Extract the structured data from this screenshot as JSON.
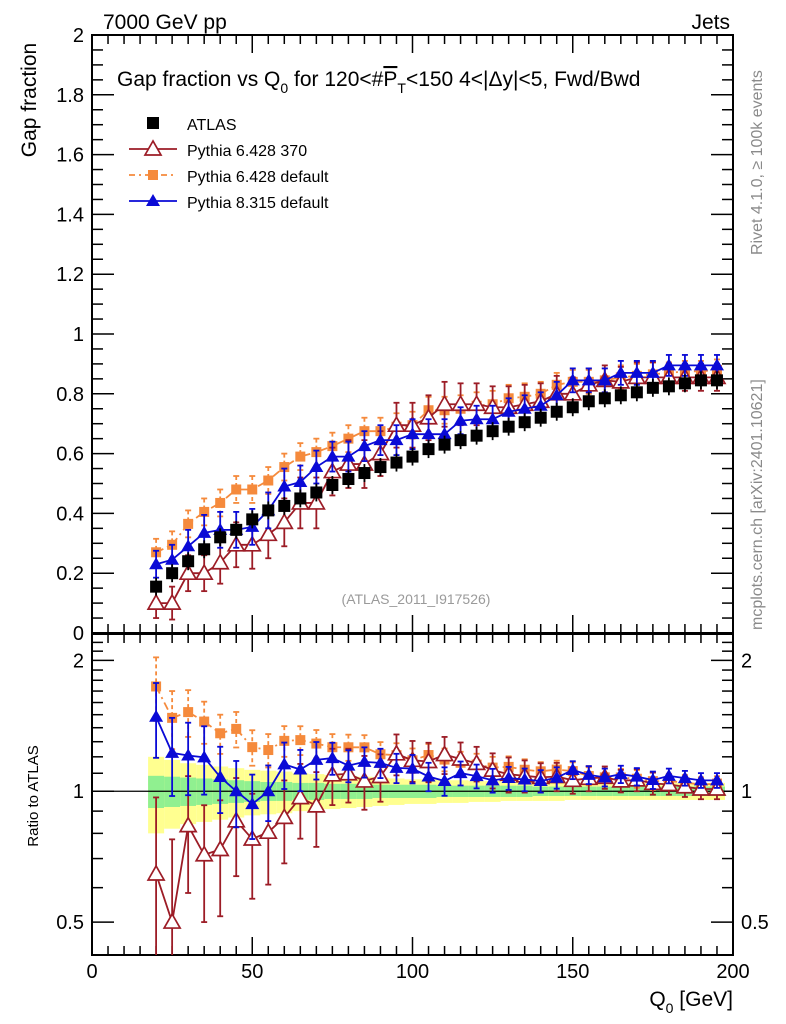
{
  "chart_data": [
    {
      "type": "line",
      "panel": "main",
      "title": "Gap fraction vs Q0 for 120<#PT<150  4<|Δy|<5, Fwd/Bwd",
      "title_parts": {
        "pre": "Gap fraction vs Q",
        "sub": "0",
        "mid": " for 120<#",
        "bar": "P",
        "barsub": "T",
        "post": "<150  4<|Δy|<5, Fwd/Bwd"
      },
      "header_left": "7000 GeV pp",
      "header_right": "Jets",
      "ylabel": "Gap fraction",
      "xlabel": "",
      "xlim": [
        0,
        200
      ],
      "ylim": [
        0,
        2
      ],
      "yticks": [
        "0",
        "0.2",
        "0.4",
        "0.6",
        "0.8",
        "1",
        "1.2",
        "1.4",
        "1.6",
        "1.8",
        "2"
      ],
      "ytick_values": [
        0,
        0.2,
        0.4,
        0.6,
        0.8,
        1.0,
        1.2,
        1.4,
        1.6,
        1.8,
        2.0
      ],
      "annotation": "(ATLAS_2011_I917526)",
      "legend_position": "top-left",
      "x": [
        20,
        25,
        30,
        35,
        40,
        45,
        50,
        55,
        60,
        65,
        70,
        75,
        80,
        85,
        90,
        95,
        100,
        105,
        110,
        115,
        120,
        125,
        130,
        135,
        140,
        145,
        150,
        155,
        160,
        165,
        170,
        175,
        180,
        185,
        190,
        195
      ],
      "series": [
        {
          "name": "ATLAS",
          "marker": "square",
          "color": "#000000",
          "values": [
            0.155,
            0.2,
            0.24,
            0.28,
            0.32,
            0.345,
            0.38,
            0.41,
            0.425,
            0.45,
            0.47,
            0.495,
            0.515,
            0.535,
            0.555,
            0.57,
            0.59,
            0.615,
            0.63,
            0.645,
            0.66,
            0.675,
            0.69,
            0.705,
            0.72,
            0.74,
            0.755,
            0.775,
            0.785,
            0.795,
            0.805,
            0.82,
            0.825,
            0.835,
            0.845,
            0.845
          ],
          "errors": [
            0.03,
            0.03,
            0.03,
            0.03,
            0.03,
            0.03,
            0.03,
            0.03,
            0.03,
            0.03,
            0.03,
            0.03,
            0.03,
            0.03,
            0.03,
            0.03,
            0.03,
            0.03,
            0.03,
            0.03,
            0.03,
            0.03,
            0.03,
            0.03,
            0.03,
            0.03,
            0.03,
            0.03,
            0.03,
            0.03,
            0.03,
            0.03,
            0.03,
            0.03,
            0.03,
            0.03
          ]
        },
        {
          "name": "Pythia 6.428 370",
          "marker": "open-triangle",
          "color": "#9c1c26",
          "values": [
            0.1,
            0.1,
            0.2,
            0.2,
            0.235,
            0.295,
            0.295,
            0.33,
            0.37,
            0.435,
            0.435,
            0.54,
            0.565,
            0.565,
            0.6,
            0.695,
            0.695,
            0.72,
            0.765,
            0.765,
            0.765,
            0.755,
            0.755,
            0.765,
            0.775,
            0.8,
            0.8,
            0.83,
            0.845,
            0.84,
            0.855,
            0.855,
            0.855,
            0.855,
            0.855,
            0.855
          ],
          "errors": [
            0.05,
            0.055,
            0.06,
            0.06,
            0.07,
            0.075,
            0.08,
            0.08,
            0.08,
            0.085,
            0.085,
            0.08,
            0.08,
            0.08,
            0.075,
            0.075,
            0.075,
            0.075,
            0.075,
            0.07,
            0.07,
            0.07,
            0.07,
            0.065,
            0.06,
            0.06,
            0.055,
            0.055,
            0.05,
            0.05,
            0.05,
            0.05,
            0.045,
            0.045,
            0.045,
            0.045
          ]
        },
        {
          "name": "Pythia 6.428 default",
          "marker": "square",
          "color": "#f58a3c",
          "dashed": true,
          "values": [
            0.27,
            0.295,
            0.365,
            0.405,
            0.435,
            0.48,
            0.48,
            0.51,
            0.555,
            0.59,
            0.605,
            0.625,
            0.65,
            0.675,
            0.675,
            0.69,
            0.695,
            0.745,
            0.745,
            0.75,
            0.76,
            0.765,
            0.785,
            0.79,
            0.8,
            0.83,
            0.84,
            0.84,
            0.845,
            0.855,
            0.86,
            0.865,
            0.87,
            0.875,
            0.875,
            0.88
          ],
          "errors": [
            0.045,
            0.045,
            0.045,
            0.045,
            0.045,
            0.045,
            0.045,
            0.045,
            0.045,
            0.045,
            0.045,
            0.045,
            0.045,
            0.045,
            0.045,
            0.045,
            0.045,
            0.045,
            0.045,
            0.045,
            0.045,
            0.045,
            0.045,
            0.045,
            0.04,
            0.04,
            0.04,
            0.04,
            0.04,
            0.04,
            0.04,
            0.04,
            0.035,
            0.035,
            0.035,
            0.035
          ]
        },
        {
          "name": "Pythia 8.315 default",
          "marker": "triangle",
          "color": "#0a0ad6",
          "values": [
            0.23,
            0.245,
            0.29,
            0.335,
            0.345,
            0.345,
            0.355,
            0.41,
            0.49,
            0.505,
            0.555,
            0.59,
            0.59,
            0.625,
            0.645,
            0.645,
            0.665,
            0.665,
            0.665,
            0.71,
            0.715,
            0.715,
            0.74,
            0.75,
            0.76,
            0.795,
            0.845,
            0.845,
            0.845,
            0.87,
            0.87,
            0.87,
            0.895,
            0.895,
            0.895,
            0.895
          ],
          "errors": [
            0.045,
            0.05,
            0.055,
            0.06,
            0.06,
            0.06,
            0.06,
            0.06,
            0.06,
            0.055,
            0.055,
            0.05,
            0.05,
            0.05,
            0.05,
            0.05,
            0.05,
            0.05,
            0.05,
            0.045,
            0.045,
            0.045,
            0.045,
            0.045,
            0.045,
            0.045,
            0.04,
            0.04,
            0.04,
            0.04,
            0.04,
            0.04,
            0.035,
            0.035,
            0.035,
            0.035
          ]
        }
      ]
    },
    {
      "type": "line",
      "panel": "ratio",
      "ylabel": "Ratio to ATLAS",
      "xlabel": "Q0 [GeV]",
      "xlabel_parts": {
        "pre": "Q",
        "sub": "0",
        "post": " [GeV]"
      },
      "xlim": [
        0,
        200
      ],
      "ylim": [
        0.42,
        2.3
      ],
      "yscale": "log",
      "xticks": [
        "0",
        "50",
        "100",
        "150",
        "200"
      ],
      "xtick_values": [
        0,
        50,
        100,
        150,
        200
      ],
      "yticks": [
        "0.5",
        "1",
        "2"
      ],
      "ytick_values": [
        0.5,
        1,
        2
      ],
      "reference_line": 1,
      "band_inner_color": "#90f090",
      "band_outer_color": "#ffff90",
      "band_inner_halfwidth": [
        0.085,
        0.08,
        0.075,
        0.07,
        0.065,
        0.06,
        0.055,
        0.05,
        0.05,
        0.045,
        0.045,
        0.04,
        0.04,
        0.04,
        0.035,
        0.035,
        0.035,
        0.035,
        0.03,
        0.03,
        0.03,
        0.03,
        0.03,
        0.03,
        0.025,
        0.025,
        0.025,
        0.025,
        0.025,
        0.025,
        0.025,
        0.025,
        0.025,
        0.025,
        0.025,
        0.025
      ],
      "band_outer_halfwidth": [
        0.2,
        0.18,
        0.16,
        0.15,
        0.14,
        0.13,
        0.12,
        0.115,
        0.11,
        0.1,
        0.095,
        0.09,
        0.085,
        0.08,
        0.075,
        0.07,
        0.065,
        0.065,
        0.06,
        0.06,
        0.055,
        0.055,
        0.05,
        0.05,
        0.05,
        0.05,
        0.045,
        0.045,
        0.045,
        0.045,
        0.045,
        0.045,
        0.045,
        0.045,
        0.045,
        0.045
      ]
    }
  ],
  "side_labels": {
    "top": "Rivet 4.1.0, ≥ 100k events",
    "bottom": "mcplots.cern.ch [arXiv:2401.10621]"
  }
}
